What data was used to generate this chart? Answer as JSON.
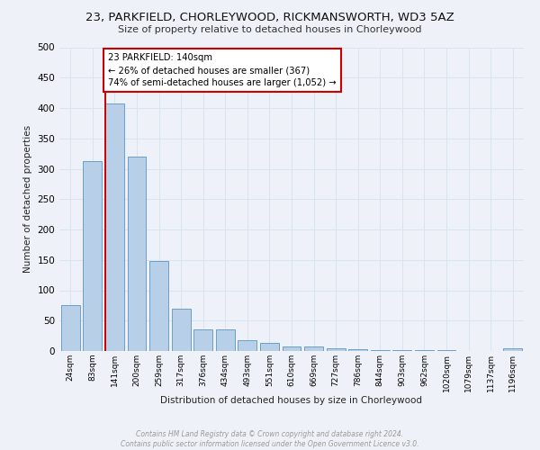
{
  "title": "23, PARKFIELD, CHORLEYWOOD, RICKMANSWORTH, WD3 5AZ",
  "subtitle": "Size of property relative to detached houses in Chorleywood",
  "xlabel": "Distribution of detached houses by size in Chorleywood",
  "ylabel": "Number of detached properties",
  "bar_labels": [
    "24sqm",
    "83sqm",
    "141sqm",
    "200sqm",
    "259sqm",
    "317sqm",
    "376sqm",
    "434sqm",
    "493sqm",
    "551sqm",
    "610sqm",
    "669sqm",
    "727sqm",
    "786sqm",
    "844sqm",
    "903sqm",
    "962sqm",
    "1020sqm",
    "1079sqm",
    "1137sqm",
    "1196sqm"
  ],
  "bar_values": [
    75,
    312,
    408,
    320,
    148,
    70,
    35,
    35,
    18,
    13,
    7,
    7,
    5,
    3,
    2,
    1,
    1,
    1,
    0,
    0,
    5
  ],
  "bar_color": "#b8cfe8",
  "bar_edge_color": "#6b9fc8",
  "property_line_index": 2,
  "annotation_line1": "23 PARKFIELD: 140sqm",
  "annotation_line2": "← 26% of detached houses are smaller (367)",
  "annotation_line3": "74% of semi-detached houses are larger (1,052) →",
  "annotation_box_color": "#cc0000",
  "grid_color": "#d8e4f0",
  "background_color": "#eef2f8",
  "footer_line1": "Contains HM Land Registry data © Crown copyright and database right 2024.",
  "footer_line2": "Contains public sector information licensed under the Open Government Licence v3.0.",
  "ylim": [
    0,
    500
  ],
  "yticks": [
    0,
    50,
    100,
    150,
    200,
    250,
    300,
    350,
    400,
    450,
    500
  ]
}
